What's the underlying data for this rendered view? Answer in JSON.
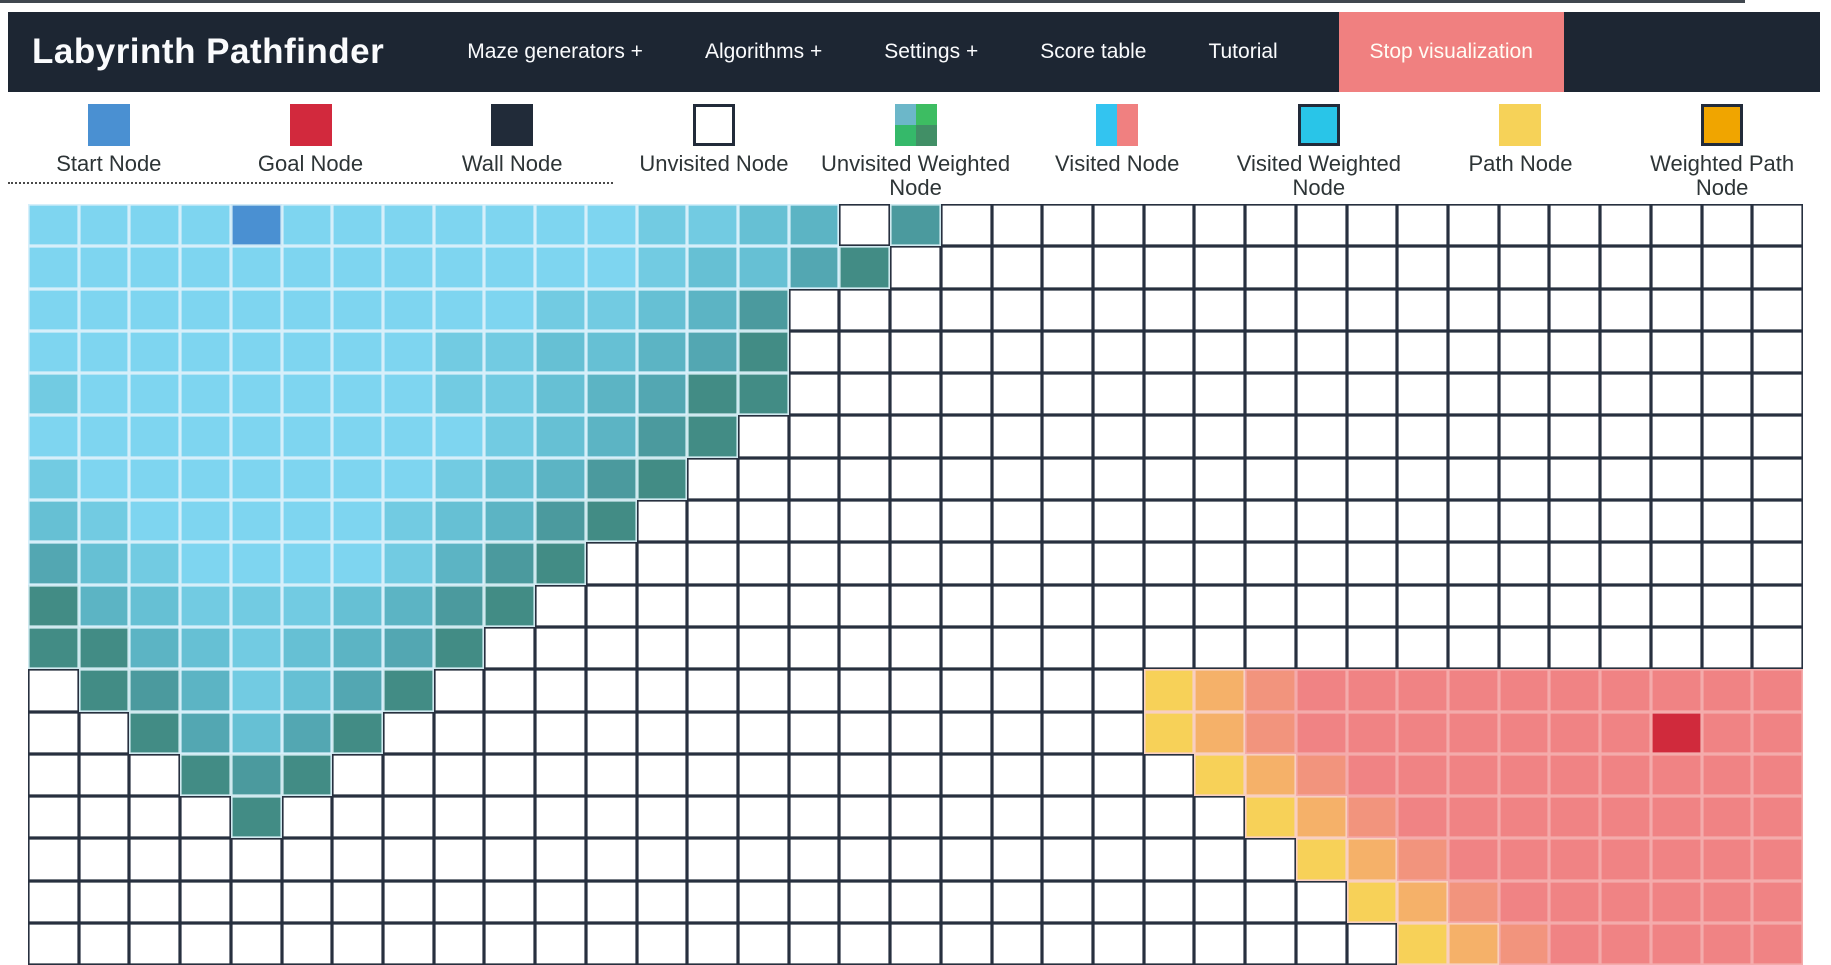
{
  "app": {
    "title": "Labyrinth Pathfinder"
  },
  "navbar": {
    "background": "#1d2633",
    "items": [
      {
        "label": "Maze generators +"
      },
      {
        "label": "Algorithms +"
      },
      {
        "label": "Settings +"
      },
      {
        "label": "Score table"
      },
      {
        "label": "Tutorial"
      }
    ],
    "stop_button": {
      "label": "Stop visualization",
      "color": "#f08080"
    }
  },
  "legend": {
    "items": [
      {
        "label": "Start Node",
        "type": "solid",
        "color": "#4a90d2",
        "bordered": false,
        "placeable": true
      },
      {
        "label": "Goal Node",
        "type": "solid",
        "color": "#d2293d",
        "bordered": false,
        "placeable": true
      },
      {
        "label": "Wall Node",
        "type": "solid",
        "color": "#212b39",
        "bordered": false,
        "placeable": true
      },
      {
        "label": "Unvisited Node",
        "type": "solid",
        "color": "#ffffff",
        "bordered": true,
        "placeable": false
      },
      {
        "label": "Unvisited Weighted Node",
        "type": "quad",
        "colors": [
          "#6cb7c9",
          "#3dbd62",
          "#35b96a",
          "#418f66"
        ],
        "bordered": false,
        "placeable": true,
        "wrap": true
      },
      {
        "label": "Visited Node",
        "type": "split",
        "colors": [
          "#33c4f0",
          "#f08080"
        ],
        "bordered": false,
        "placeable": false
      },
      {
        "label": "Visited Weighted Node",
        "type": "solid",
        "color": "#29c5e8",
        "bordered": true,
        "placeable": false,
        "wrap": true
      },
      {
        "label": "Path Node",
        "type": "solid",
        "color": "#f6d258",
        "bordered": false,
        "placeable": false
      },
      {
        "label": "Weighted Path Node",
        "type": "solid",
        "color": "#f0a500",
        "bordered": true,
        "placeable": false
      }
    ]
  },
  "grid": {
    "cols": 35,
    "rows": 18,
    "start": {
      "row": 0,
      "col": 4
    },
    "goal": {
      "row": 12,
      "col": 32
    },
    "palette": {
      "0": {
        "bg": "#7ed5f0",
        "border": "#d6effa"
      },
      "1": {
        "bg": "#72cbe2",
        "border": "#d6effa"
      },
      "2": {
        "bg": "#66c0d4",
        "border": "#d6effa"
      },
      "3": {
        "bg": "#5cb4c4",
        "border": "#d6effa"
      },
      "4": {
        "bg": "#53a7b2",
        "border": "#d6effa"
      },
      "5": {
        "bg": "#4b9a9e",
        "border": "#cfe9ef"
      },
      "6": {
        "bg": "#428c85",
        "border": "#cfe9ef"
      },
      "S": {
        "bg": "#4a90d2",
        "border": "#cfe9f6"
      },
      ".": {
        "bg": "#ffffff",
        "border": "#27303f"
      },
      "y": {
        "bg": "#f7d158",
        "border": "#f8cfc0"
      },
      "o": {
        "bg": "#f5b169",
        "border": "#f8cfc0"
      },
      "p": {
        "bg": "#f2947d",
        "border": "#f4abab"
      },
      "s": {
        "bg": "#f08384",
        "border": "#f4abab"
      },
      "G": {
        "bg": "#d02a3c",
        "border": "#f4abab"
      }
    },
    "cells": [
      "0000S00000001123 5..................",
      "00000000000012246..................",
      "000000000011235....................",
      "000000001122346....................",
      "100000001123466....................",
      "00000000012356.....................",
      "1000000012356......................",
      "210000012356.......................",
      "42100001356........................",
      "6321112356.........................",
      "663212346..........................",
      ".6531246..............yopssssssssss",
      "..64246...............yopsssssssGss",
      "...656.................yopsssssssss",
      "....6...................yopssssssss",
      ".........................yopsssssss",
      "..........................yopssssss",
      "...........................yopsssss"
    ]
  }
}
